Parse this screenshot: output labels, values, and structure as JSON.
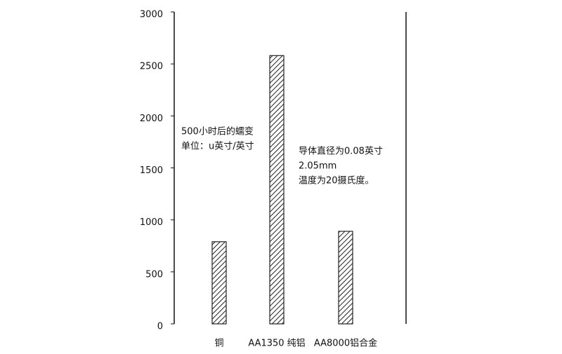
{
  "chart_data": {
    "type": "bar",
    "categories": [
      "铜",
      "AA1350 纯铝",
      "AA8000铝合金"
    ],
    "values": [
      790,
      2580,
      890
    ],
    "color": "#222222",
    "ylim": [
      0,
      3000
    ],
    "yticks": [
      0,
      500,
      1000,
      1500,
      2000,
      2500,
      3000
    ],
    "annotations": [
      [
        "500小时后的蠕变",
        "单位：u英寸/英寸"
      ],
      [
        "导体直径为0.08英寸",
        "2.05mm",
        "温度为20摄氏度。"
      ]
    ]
  }
}
